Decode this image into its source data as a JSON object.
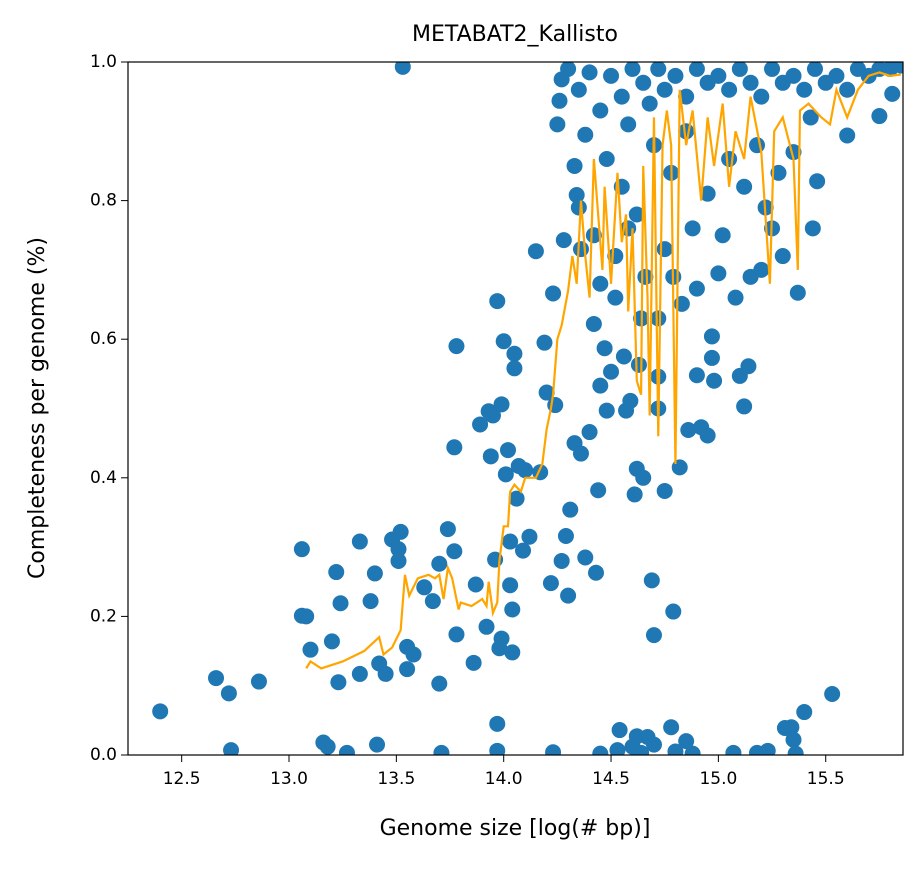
{
  "chart_data": {
    "type": "scatter",
    "title": "METABAT2_Kallisto",
    "xlabel": "Genome size [log(# bp)]",
    "ylabel": "Completeness per genome (%)",
    "xlim": [
      12.25,
      15.86
    ],
    "ylim": [
      0,
      1
    ],
    "xticks": [
      {
        "value": 12.5,
        "label": "12.5"
      },
      {
        "value": 13,
        "label": "13.0"
      },
      {
        "value": 13.5,
        "label": "13.5"
      },
      {
        "value": 14,
        "label": "14.0"
      },
      {
        "value": 14.5,
        "label": "14.5"
      },
      {
        "value": 15,
        "label": "15.0"
      },
      {
        "value": 15.5,
        "label": "15.5"
      }
    ],
    "yticks": [
      {
        "value": 0,
        "label": "0.0"
      },
      {
        "value": 0.2,
        "label": "0.2"
      },
      {
        "value": 0.4,
        "label": "0.4"
      },
      {
        "value": 0.6,
        "label": "0.6"
      },
      {
        "value": 0.8,
        "label": "0.8"
      },
      {
        "value": 1,
        "label": "1.0"
      }
    ],
    "series": [
      {
        "type": "scatter",
        "color": "#1f77b4",
        "x": [
          12.4,
          12.66,
          12.72,
          12.73,
          12.86,
          13.06,
          13.06,
          13.08,
          13.1,
          13.16,
          13.18,
          13.2,
          13.22,
          13.23,
          13.24,
          13.27,
          13.33,
          13.33,
          13.38,
          13.4,
          13.41,
          13.42,
          13.45,
          13.48,
          13.51,
          13.51,
          13.52,
          13.53,
          13.55,
          13.55,
          13.58,
          13.63,
          13.67,
          13.7,
          13.7,
          13.71,
          13.74,
          13.77,
          13.78,
          13.77,
          13.78,
          13.86,
          13.87,
          13.89,
          13.92,
          13.93,
          13.94,
          13.95,
          13.96,
          13.97,
          13.97,
          13.97,
          13.98,
          13.99,
          13.99,
          14.0,
          14.01,
          14.02,
          14.03,
          14.03,
          14.04,
          14.04,
          14.05,
          14.05,
          14.06,
          14.07,
          14.09,
          14.1,
          14.12,
          14.15,
          14.17,
          14.19,
          14.2,
          14.22,
          14.23,
          14.23,
          14.24,
          14.26,
          14.27,
          14.28,
          14.29,
          14.3,
          14.31,
          14.33,
          14.33,
          14.34,
          14.35,
          14.36,
          14.38,
          14.4,
          14.42,
          14.43,
          14.44,
          14.45,
          14.45,
          14.47,
          14.48,
          14.5,
          14.52,
          14.53,
          14.54,
          14.56,
          14.57,
          14.59,
          14.6,
          14.61,
          14.62,
          14.62,
          14.63,
          14.64,
          14.65,
          14.67,
          14.69,
          14.7,
          14.7,
          14.72,
          14.72,
          14.75,
          14.78,
          14.79,
          14.8,
          14.82,
          14.83,
          14.85,
          14.86,
          14.88,
          14.9,
          14.9,
          14.92,
          14.95,
          14.97,
          14.97,
          14.98,
          15.0,
          15.07,
          15.1,
          15.12,
          15.14,
          15.18,
          15.2,
          15.23,
          15.25,
          15.31,
          15.34,
          15.35,
          15.36,
          15.37,
          15.4,
          15.44,
          15.46,
          15.53,
          15.6,
          15.75,
          15.81,
          14.27,
          14.3,
          14.35,
          14.4,
          14.25,
          14.38,
          14.45,
          14.5,
          14.55,
          14.58,
          14.6,
          14.65,
          14.68,
          14.72,
          14.75,
          14.8,
          14.85,
          14.9,
          14.95,
          15.0,
          15.05,
          15.1,
          15.15,
          15.2,
          15.25,
          15.3,
          15.35,
          15.4,
          15.45,
          15.5,
          15.55,
          15.6,
          15.65,
          15.7,
          15.75,
          15.8,
          15.85,
          14.48,
          14.55,
          14.62,
          14.7,
          14.78,
          14.85,
          14.95,
          15.05,
          15.12,
          15.18,
          15.28,
          15.35,
          15.43,
          14.42,
          14.52,
          14.66,
          14.75,
          14.88,
          15.02,
          15.08,
          15.15,
          15.22,
          15.3,
          14.36,
          14.45,
          14.58,
          14.64,
          14.79,
          14.72
        ],
        "y": [
          0.063,
          0.111,
          0.089,
          0.007,
          0.106,
          0.297,
          0.201,
          0.2,
          0.152,
          0.018,
          0.012,
          0.164,
          0.264,
          0.105,
          0.219,
          0.003,
          0.308,
          0.117,
          0.222,
          0.262,
          0.015,
          0.132,
          0.117,
          0.311,
          0.297,
          0.28,
          0.322,
          0.993,
          0.156,
          0.124,
          0.145,
          0.242,
          0.222,
          0.103,
          0.276,
          0.003,
          0.326,
          0.444,
          0.59,
          0.294,
          0.174,
          0.133,
          0.246,
          0.477,
          0.185,
          0.496,
          0.431,
          0.49,
          0.282,
          0.045,
          0.006,
          0.655,
          0.154,
          0.506,
          0.168,
          0.597,
          0.405,
          0.44,
          0.308,
          0.245,
          0.21,
          0.148,
          0.579,
          0.558,
          0.37,
          0.417,
          0.295,
          0.411,
          0.315,
          0.727,
          0.408,
          0.595,
          0.523,
          0.248,
          0.004,
          0.666,
          0.505,
          0.944,
          0.28,
          0.743,
          0.316,
          0.23,
          0.354,
          0.45,
          0.85,
          0.808,
          0.79,
          0.435,
          0.285,
          0.466,
          0.622,
          0.263,
          0.382,
          0.002,
          0.533,
          0.587,
          0.497,
          0.553,
          0.66,
          0.007,
          0.036,
          0.575,
          0.497,
          0.511,
          0.012,
          0.376,
          0.413,
          0.027,
          0.563,
          0.003,
          0.4,
          0.026,
          0.252,
          0.173,
          0.015,
          0.546,
          0.5,
          0.381,
          0.04,
          0.207,
          0.005,
          0.415,
          0.651,
          0.02,
          0.469,
          0.002,
          0.548,
          0.673,
          0.473,
          0.461,
          0.573,
          0.604,
          0.54,
          0.695,
          0.003,
          0.547,
          0.503,
          0.561,
          0.003,
          0.7,
          0.006,
          0.76,
          0.039,
          0.04,
          0.022,
          0.002,
          0.667,
          0.062,
          0.76,
          0.828,
          0.088,
          0.894,
          0.922,
          0.954,
          0.975,
          0.99,
          0.96,
          0.985,
          0.91,
          0.895,
          0.93,
          0.98,
          0.95,
          0.91,
          0.99,
          0.97,
          0.94,
          0.99,
          0.96,
          0.98,
          0.95,
          0.99,
          0.97,
          0.98,
          0.96,
          0.99,
          0.97,
          0.95,
          0.99,
          0.97,
          0.98,
          0.96,
          0.99,
          0.97,
          0.98,
          0.96,
          0.99,
          0.98,
          0.99,
          0.99,
          0.995,
          0.86,
          0.82,
          0.78,
          0.88,
          0.84,
          0.9,
          0.81,
          0.86,
          0.82,
          0.88,
          0.84,
          0.87,
          0.92,
          0.75,
          0.72,
          0.69,
          0.73,
          0.76,
          0.75,
          0.66,
          0.69,
          0.79,
          0.72,
          0.73,
          0.68,
          0.76,
          0.63,
          0.69,
          0.63
        ]
      },
      {
        "type": "line",
        "color": "#ffa500",
        "x": [
          13.08,
          13.1,
          13.15,
          13.2,
          13.25,
          13.35,
          13.42,
          13.44,
          13.48,
          13.52,
          13.54,
          13.56,
          13.6,
          13.65,
          13.68,
          13.7,
          13.72,
          13.74,
          13.76,
          13.79,
          13.8,
          13.85,
          13.9,
          13.92,
          13.93,
          13.95,
          13.97,
          13.98,
          14.0,
          14.02,
          14.03,
          14.05,
          14.08,
          14.1,
          14.15,
          14.18,
          14.2,
          14.22,
          14.23,
          14.25,
          14.27,
          14.3,
          14.32,
          14.34,
          14.36,
          14.38,
          14.4,
          14.42,
          14.44,
          14.46,
          14.47,
          14.5,
          14.53,
          14.55,
          14.57,
          14.58,
          14.6,
          14.62,
          14.64,
          14.65,
          14.67,
          14.68,
          14.7,
          14.72,
          14.74,
          14.76,
          14.78,
          14.8,
          14.82,
          14.85,
          14.88,
          14.92,
          14.95,
          14.98,
          15.02,
          15.05,
          15.08,
          15.12,
          15.15,
          15.2,
          15.24,
          15.26,
          15.3,
          15.35,
          15.37,
          15.38,
          15.42,
          15.48,
          15.52,
          15.55,
          15.6,
          15.65,
          15.7,
          15.75,
          15.8,
          15.85
        ],
        "y": [
          0.125,
          0.135,
          0.125,
          0.13,
          0.135,
          0.15,
          0.17,
          0.145,
          0.155,
          0.18,
          0.26,
          0.23,
          0.255,
          0.26,
          0.255,
          0.26,
          0.225,
          0.27,
          0.255,
          0.21,
          0.22,
          0.215,
          0.225,
          0.215,
          0.25,
          0.205,
          0.22,
          0.28,
          0.33,
          0.33,
          0.38,
          0.39,
          0.38,
          0.4,
          0.4,
          0.42,
          0.47,
          0.5,
          0.52,
          0.6,
          0.62,
          0.67,
          0.72,
          0.68,
          0.8,
          0.72,
          0.66,
          0.86,
          0.78,
          0.7,
          0.82,
          0.68,
          0.84,
          0.74,
          0.78,
          0.64,
          0.76,
          0.54,
          0.52,
          0.85,
          0.66,
          0.49,
          0.92,
          0.46,
          0.88,
          0.93,
          0.88,
          0.42,
          0.96,
          0.88,
          0.93,
          0.8,
          0.92,
          0.85,
          0.94,
          0.82,
          0.9,
          0.86,
          0.95,
          0.87,
          0.68,
          0.9,
          0.92,
          0.86,
          0.7,
          0.93,
          0.94,
          0.92,
          0.91,
          0.96,
          0.92,
          0.96,
          0.98,
          0.985,
          0.98,
          0.982
        ]
      }
    ]
  }
}
